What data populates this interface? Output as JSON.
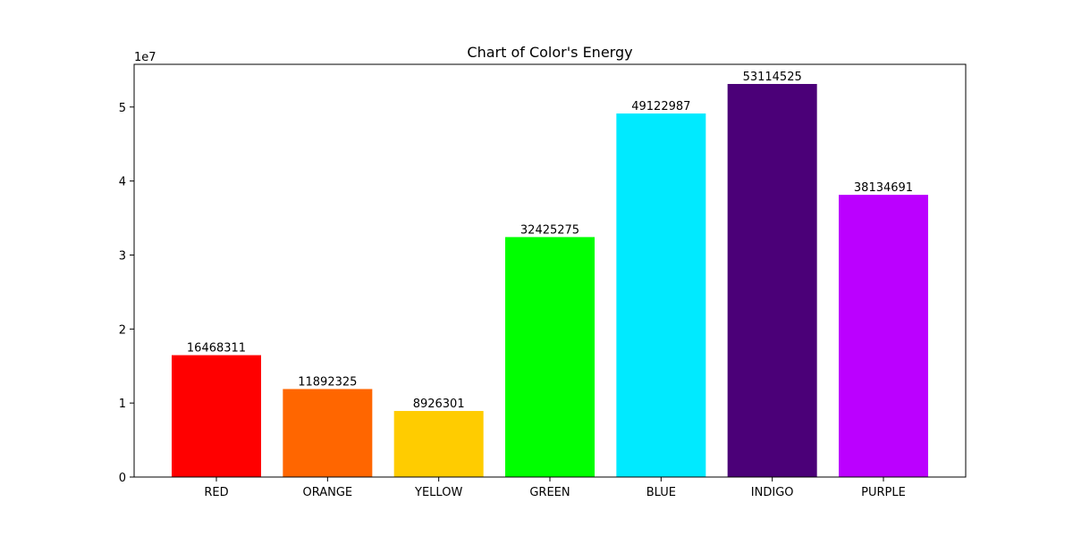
{
  "chart_data": {
    "type": "bar",
    "title": "Chart of Color's Energy",
    "xlabel": "",
    "ylabel": "",
    "categories": [
      "RED",
      "ORANGE",
      "YELLOW",
      "GREEN",
      "BLUE",
      "INDIGO",
      "PURPLE"
    ],
    "values": [
      16468311,
      11892325,
      8926301,
      32425275,
      49122987,
      53114525,
      38134691
    ],
    "value_labels": [
      "16468311",
      "11892325",
      "8926301",
      "32425275",
      "49122987",
      "53114525",
      "38134691"
    ],
    "colors": [
      "#ff0000",
      "#ff6600",
      "#ffcc00",
      "#00ff00",
      "#00eaff",
      "#4b0078",
      "#bb00ff"
    ],
    "ylim": [
      0,
      55769251
    ],
    "yticks": [
      0,
      10000000,
      20000000,
      30000000,
      40000000,
      50000000
    ],
    "ytick_labels": [
      "0",
      "1",
      "2",
      "3",
      "4",
      "5"
    ],
    "y_offset_label": "1e7",
    "grid": false,
    "legend": "none"
  }
}
